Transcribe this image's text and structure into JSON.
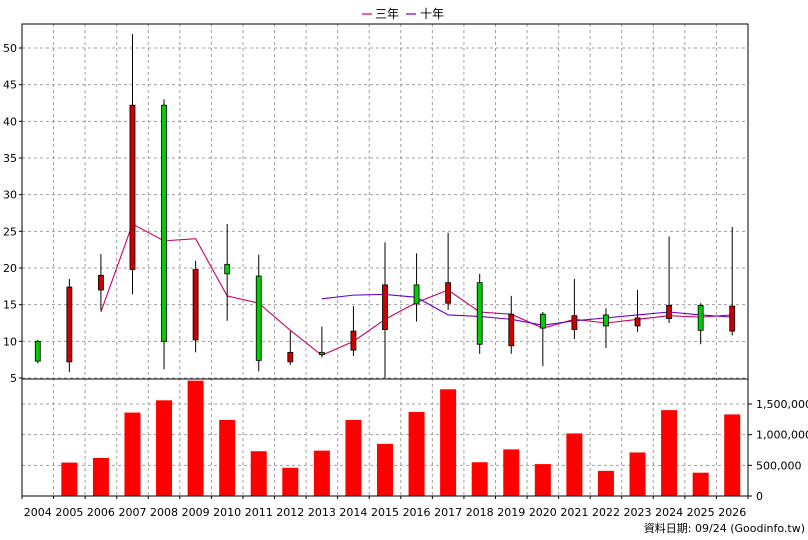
{
  "chart_data": [
    {
      "type": "candlestick",
      "legend": [
        {
          "label": "三年",
          "color": "#cc0066"
        },
        {
          "label": "十年",
          "color": "#6600cc"
        }
      ],
      "legend_placement": "top-center",
      "x_categories": [
        "2004",
        "2005",
        "2006",
        "2007",
        "2008",
        "2009",
        "2010",
        "2011",
        "2012",
        "2013",
        "2014",
        "2015",
        "2016",
        "2017",
        "2018",
        "2019",
        "2020",
        "2021",
        "2022",
        "2023",
        "2024",
        "2025",
        "2026"
      ],
      "y_left_ticks": [
        5,
        10,
        15,
        20,
        25,
        30,
        35,
        40,
        45,
        50
      ],
      "y_left_range": [
        5,
        53
      ],
      "grid": true,
      "up_color": "#00cc00",
      "down_color": "#cc0000",
      "candles": [
        {
          "x": "2004",
          "open": 7.3,
          "close": 10.0,
          "high": 10.2,
          "low": 7.0
        },
        {
          "x": "2005",
          "open": 17.4,
          "close": 7.2,
          "high": 18.5,
          "low": 5.8
        },
        {
          "x": "2006",
          "open": 19.0,
          "close": 17.0,
          "high": 21.9,
          "low": 14.2
        },
        {
          "x": "2007",
          "open": 42.2,
          "close": 19.8,
          "high": 51.9,
          "low": 16.4
        },
        {
          "x": "2008",
          "open": 10.0,
          "close": 42.2,
          "high": 43.0,
          "low": 6.2
        },
        {
          "x": "2009",
          "open": 19.8,
          "close": 10.2,
          "high": 21.0,
          "low": 8.5
        },
        {
          "x": "2010",
          "open": 19.2,
          "close": 20.5,
          "high": 26.0,
          "low": 12.8
        },
        {
          "x": "2011",
          "open": 7.4,
          "close": 18.9,
          "high": 21.8,
          "low": 5.9
        },
        {
          "x": "2012",
          "open": 8.5,
          "close": 7.2,
          "high": 11.4,
          "low": 6.8
        },
        {
          "x": "2013",
          "open": 8.2,
          "close": 8.5,
          "high": 12.0,
          "low": 7.8
        },
        {
          "x": "2014",
          "open": 11.4,
          "close": 8.8,
          "high": 14.8,
          "low": 8.0
        },
        {
          "x": "2015",
          "open": 17.7,
          "close": 11.6,
          "high": 23.5,
          "low": 5.0
        },
        {
          "x": "2016",
          "open": 15.1,
          "close": 17.7,
          "high": 22.0,
          "low": 12.7
        },
        {
          "x": "2017",
          "open": 18.0,
          "close": 15.2,
          "high": 24.8,
          "low": 14.3
        },
        {
          "x": "2018",
          "open": 9.6,
          "close": 18.0,
          "high": 19.2,
          "low": 8.3
        },
        {
          "x": "2019",
          "open": 13.7,
          "close": 9.4,
          "high": 16.2,
          "low": 8.3
        },
        {
          "x": "2020",
          "open": 11.8,
          "close": 13.7,
          "high": 14.0,
          "low": 6.6
        },
        {
          "x": "2021",
          "open": 13.5,
          "close": 11.6,
          "high": 18.5,
          "low": 10.3
        },
        {
          "x": "2022",
          "open": 12.1,
          "close": 13.6,
          "high": 14.5,
          "low": 9.1
        },
        {
          "x": "2023",
          "open": 13.2,
          "close": 12.1,
          "high": 17.0,
          "low": 11.3
        },
        {
          "x": "2024",
          "open": 14.9,
          "close": 13.1,
          "high": 24.3,
          "low": 12.5
        },
        {
          "x": "2025",
          "open": 11.5,
          "close": 14.9,
          "high": 15.2,
          "low": 9.6
        },
        {
          "x": "2026",
          "open": 14.8,
          "close": 11.4,
          "high": 25.6,
          "low": 10.8
        }
      ],
      "series": [
        {
          "name": "三年",
          "color": "#cc0066",
          "x": [
            "2006",
            "2007",
            "2008",
            "2009",
            "2010",
            "2011",
            "2012",
            "2013",
            "2014",
            "2015",
            "2016",
            "2017",
            "2018",
            "2019",
            "2020",
            "2021",
            "2022",
            "2023",
            "2024",
            "2025",
            "2026"
          ],
          "values": [
            14.0,
            26.0,
            23.7,
            24.0,
            16.2,
            15.2,
            11.5,
            8.1,
            10.0,
            13.0,
            15.3,
            17.0,
            14.0,
            13.7,
            11.8,
            13.0,
            12.5,
            13.0,
            13.5,
            13.3,
            13.6
          ]
        },
        {
          "name": "十年",
          "color": "#6600cc",
          "x": [
            "2013",
            "2014",
            "2015",
            "2016",
            "2017",
            "2018",
            "2019",
            "2020",
            "2021",
            "2022",
            "2023",
            "2024",
            "2025",
            "2026"
          ],
          "values": [
            15.8,
            16.3,
            16.4,
            16.0,
            13.6,
            13.4,
            13.0,
            12.2,
            12.8,
            13.2,
            13.6,
            14.0,
            13.6,
            13.3
          ]
        }
      ]
    },
    {
      "type": "bar",
      "categories": [
        "2004",
        "2005",
        "2006",
        "2007",
        "2008",
        "2009",
        "2010",
        "2011",
        "2012",
        "2013",
        "2014",
        "2015",
        "2016",
        "2017",
        "2018",
        "2019",
        "2020",
        "2021",
        "2022",
        "2023",
        "2024",
        "2025",
        "2026"
      ],
      "values": [
        8000,
        545000,
        620000,
        1360000,
        1560000,
        1880000,
        1240000,
        730000,
        460000,
        740000,
        1240000,
        850000,
        1370000,
        1740000,
        550000,
        760000,
        520000,
        1020000,
        410000,
        710000,
        1400000,
        380000,
        1330000
      ],
      "color": "#ff0000",
      "y_right_ticks": [
        0,
        500000,
        1000000,
        1500000
      ],
      "y_right_tick_labels": [
        "0",
        "500,000",
        "1,000,000",
        "1,500,000"
      ],
      "y_range": [
        0,
        1900000
      ]
    }
  ],
  "footer": {
    "credit": "資料日期: 09/24  (Goodinfo.tw)"
  }
}
